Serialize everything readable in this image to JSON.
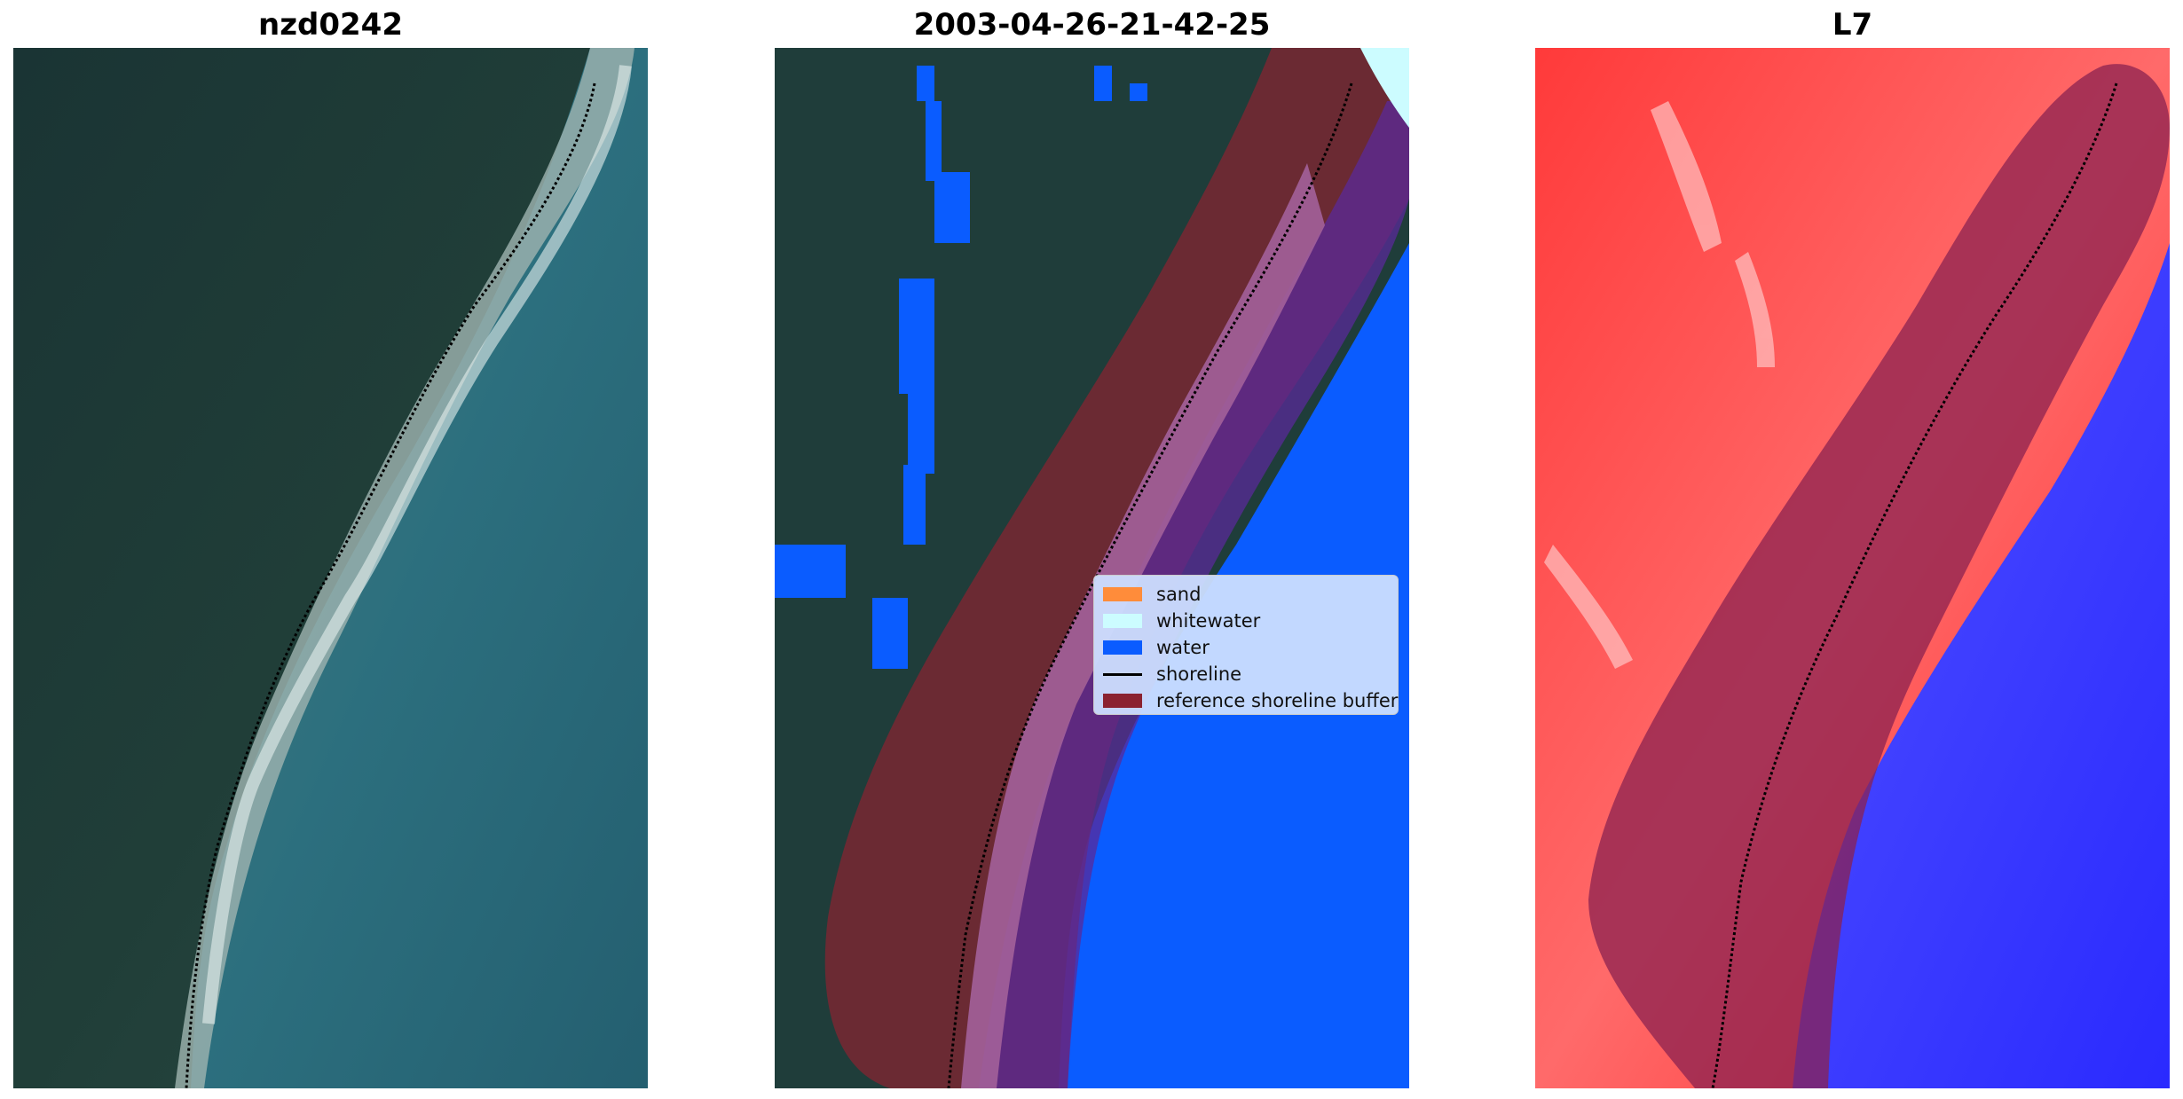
{
  "panels": {
    "left_title": "nzd0242",
    "middle_title": "2003-04-26-21-42-25",
    "right_title": "L7"
  },
  "legend": {
    "items": [
      {
        "label": "sand",
        "color": "#ff8c3a"
      },
      {
        "label": "whitewater",
        "color": "#ccfcff"
      },
      {
        "label": "water",
        "color": "#0a5cff"
      },
      {
        "label": "shoreline",
        "color": "#000000"
      },
      {
        "label": "reference shoreline buffer",
        "color": "#8b2230"
      }
    ]
  },
  "colors": {
    "land": "#1f3d3a",
    "sea": "#2b6e7d",
    "water_class": "#0a5cff",
    "buffer": "#8b2230",
    "index_land": "#ff2b2b",
    "index_water": "#3b3bff"
  }
}
